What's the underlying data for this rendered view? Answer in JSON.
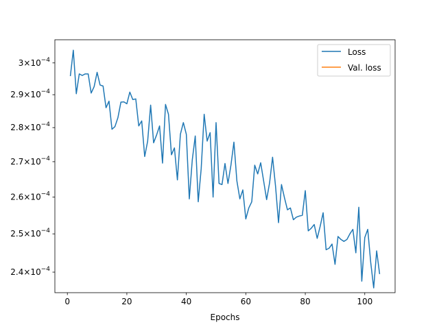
{
  "chart_data": {
    "type": "line",
    "title": "",
    "xlabel": "Epochs",
    "ylabel": "",
    "yscale": "log",
    "xlim": [
      -4.2,
      110.2
    ],
    "ylim": [
      0.0002348,
      0.0003075
    ],
    "xticks": [
      0,
      20,
      40,
      60,
      80,
      100
    ],
    "xtick_labels": [
      "0",
      "20",
      "40",
      "60",
      "80",
      "100"
    ],
    "yticks": [
      0.00024,
      0.00025,
      0.00026,
      0.00027,
      0.00028,
      0.00029,
      0.0003
    ],
    "ytick_labels": [
      {
        "mantissa": "2.4",
        "exp": "−4"
      },
      {
        "mantissa": "2.5",
        "exp": "−4"
      },
      {
        "mantissa": "2.6",
        "exp": "−4"
      },
      {
        "mantissa": "2.7",
        "exp": "−4"
      },
      {
        "mantissa": "2.8",
        "exp": "−4"
      },
      {
        "mantissa": "2.9",
        "exp": "−4"
      },
      {
        "mantissa": "3",
        "exp": "−4"
      }
    ],
    "grid": false,
    "legend_position": "top-right",
    "series": [
      {
        "name": "Loss",
        "color": "#1f77b4",
        "x": [
          1,
          2,
          3,
          4,
          5,
          6,
          7,
          8,
          9,
          10,
          11,
          12,
          13,
          14,
          15,
          16,
          17,
          18,
          19,
          20,
          21,
          22,
          23,
          24,
          25,
          26,
          27,
          28,
          29,
          30,
          31,
          32,
          33,
          34,
          35,
          36,
          37,
          38,
          39,
          40,
          41,
          42,
          43,
          44,
          45,
          46,
          47,
          48,
          49,
          50,
          51,
          52,
          53,
          54,
          55,
          56,
          57,
          58,
          59,
          60,
          61,
          62,
          63,
          64,
          65,
          66,
          67,
          68,
          69,
          70,
          71,
          72,
          73,
          74,
          75,
          76,
          77,
          78,
          79,
          80,
          81,
          82,
          83,
          84,
          85,
          86,
          87,
          88,
          89,
          90,
          91,
          92,
          93,
          94,
          95,
          96,
          97,
          98,
          99,
          100,
          101,
          102,
          103,
          104,
          105
        ],
        "values": [
          0.0002958,
          0.0003041,
          0.0002903,
          0.0002965,
          0.000296,
          0.0002965,
          0.0002965,
          0.0002905,
          0.0002925,
          0.000297,
          0.000293,
          0.0002927,
          0.000286,
          0.000288,
          0.0002795,
          0.0002803,
          0.000283,
          0.0002877,
          0.0002878,
          0.0002872,
          0.0002908,
          0.0002885,
          0.0002887,
          0.0002805,
          0.000282,
          0.0002715,
          0.000276,
          0.0002868,
          0.0002755,
          0.0002778,
          0.0002805,
          0.0002696,
          0.000287,
          0.000284,
          0.000272,
          0.000274,
          0.0002648,
          0.000278,
          0.0002815,
          0.000278,
          0.0002595,
          0.0002705,
          0.0002775,
          0.0002587,
          0.000268,
          0.000284,
          0.000276,
          0.0002785,
          0.00026,
          0.0002815,
          0.0002638,
          0.0002635,
          0.0002695,
          0.0002638,
          0.000269,
          0.0002757,
          0.0002645,
          0.0002595,
          0.000262,
          0.000254,
          0.000257,
          0.0002587,
          0.000269,
          0.0002665,
          0.0002697,
          0.0002645,
          0.0002593,
          0.000264,
          0.0002713,
          0.000263,
          0.000253,
          0.0002635,
          0.0002598,
          0.0002565,
          0.000257,
          0.0002538,
          0.0002545,
          0.0002548,
          0.000255,
          0.0002618,
          0.0002508,
          0.0002515,
          0.0002525,
          0.0002488,
          0.000252,
          0.0002557,
          0.0002458,
          0.0002462,
          0.0002473,
          0.000242,
          0.0002493,
          0.0002485,
          0.000248,
          0.0002485,
          0.00025,
          0.0002512,
          0.000245,
          0.0002572,
          0.0002377,
          0.000249,
          0.0002512,
          0.0002425,
          0.000236,
          0.0002455,
          0.0002395
        ]
      },
      {
        "name": "Val. loss",
        "color": "#ff7f0e",
        "x": [],
        "values": []
      }
    ]
  }
}
